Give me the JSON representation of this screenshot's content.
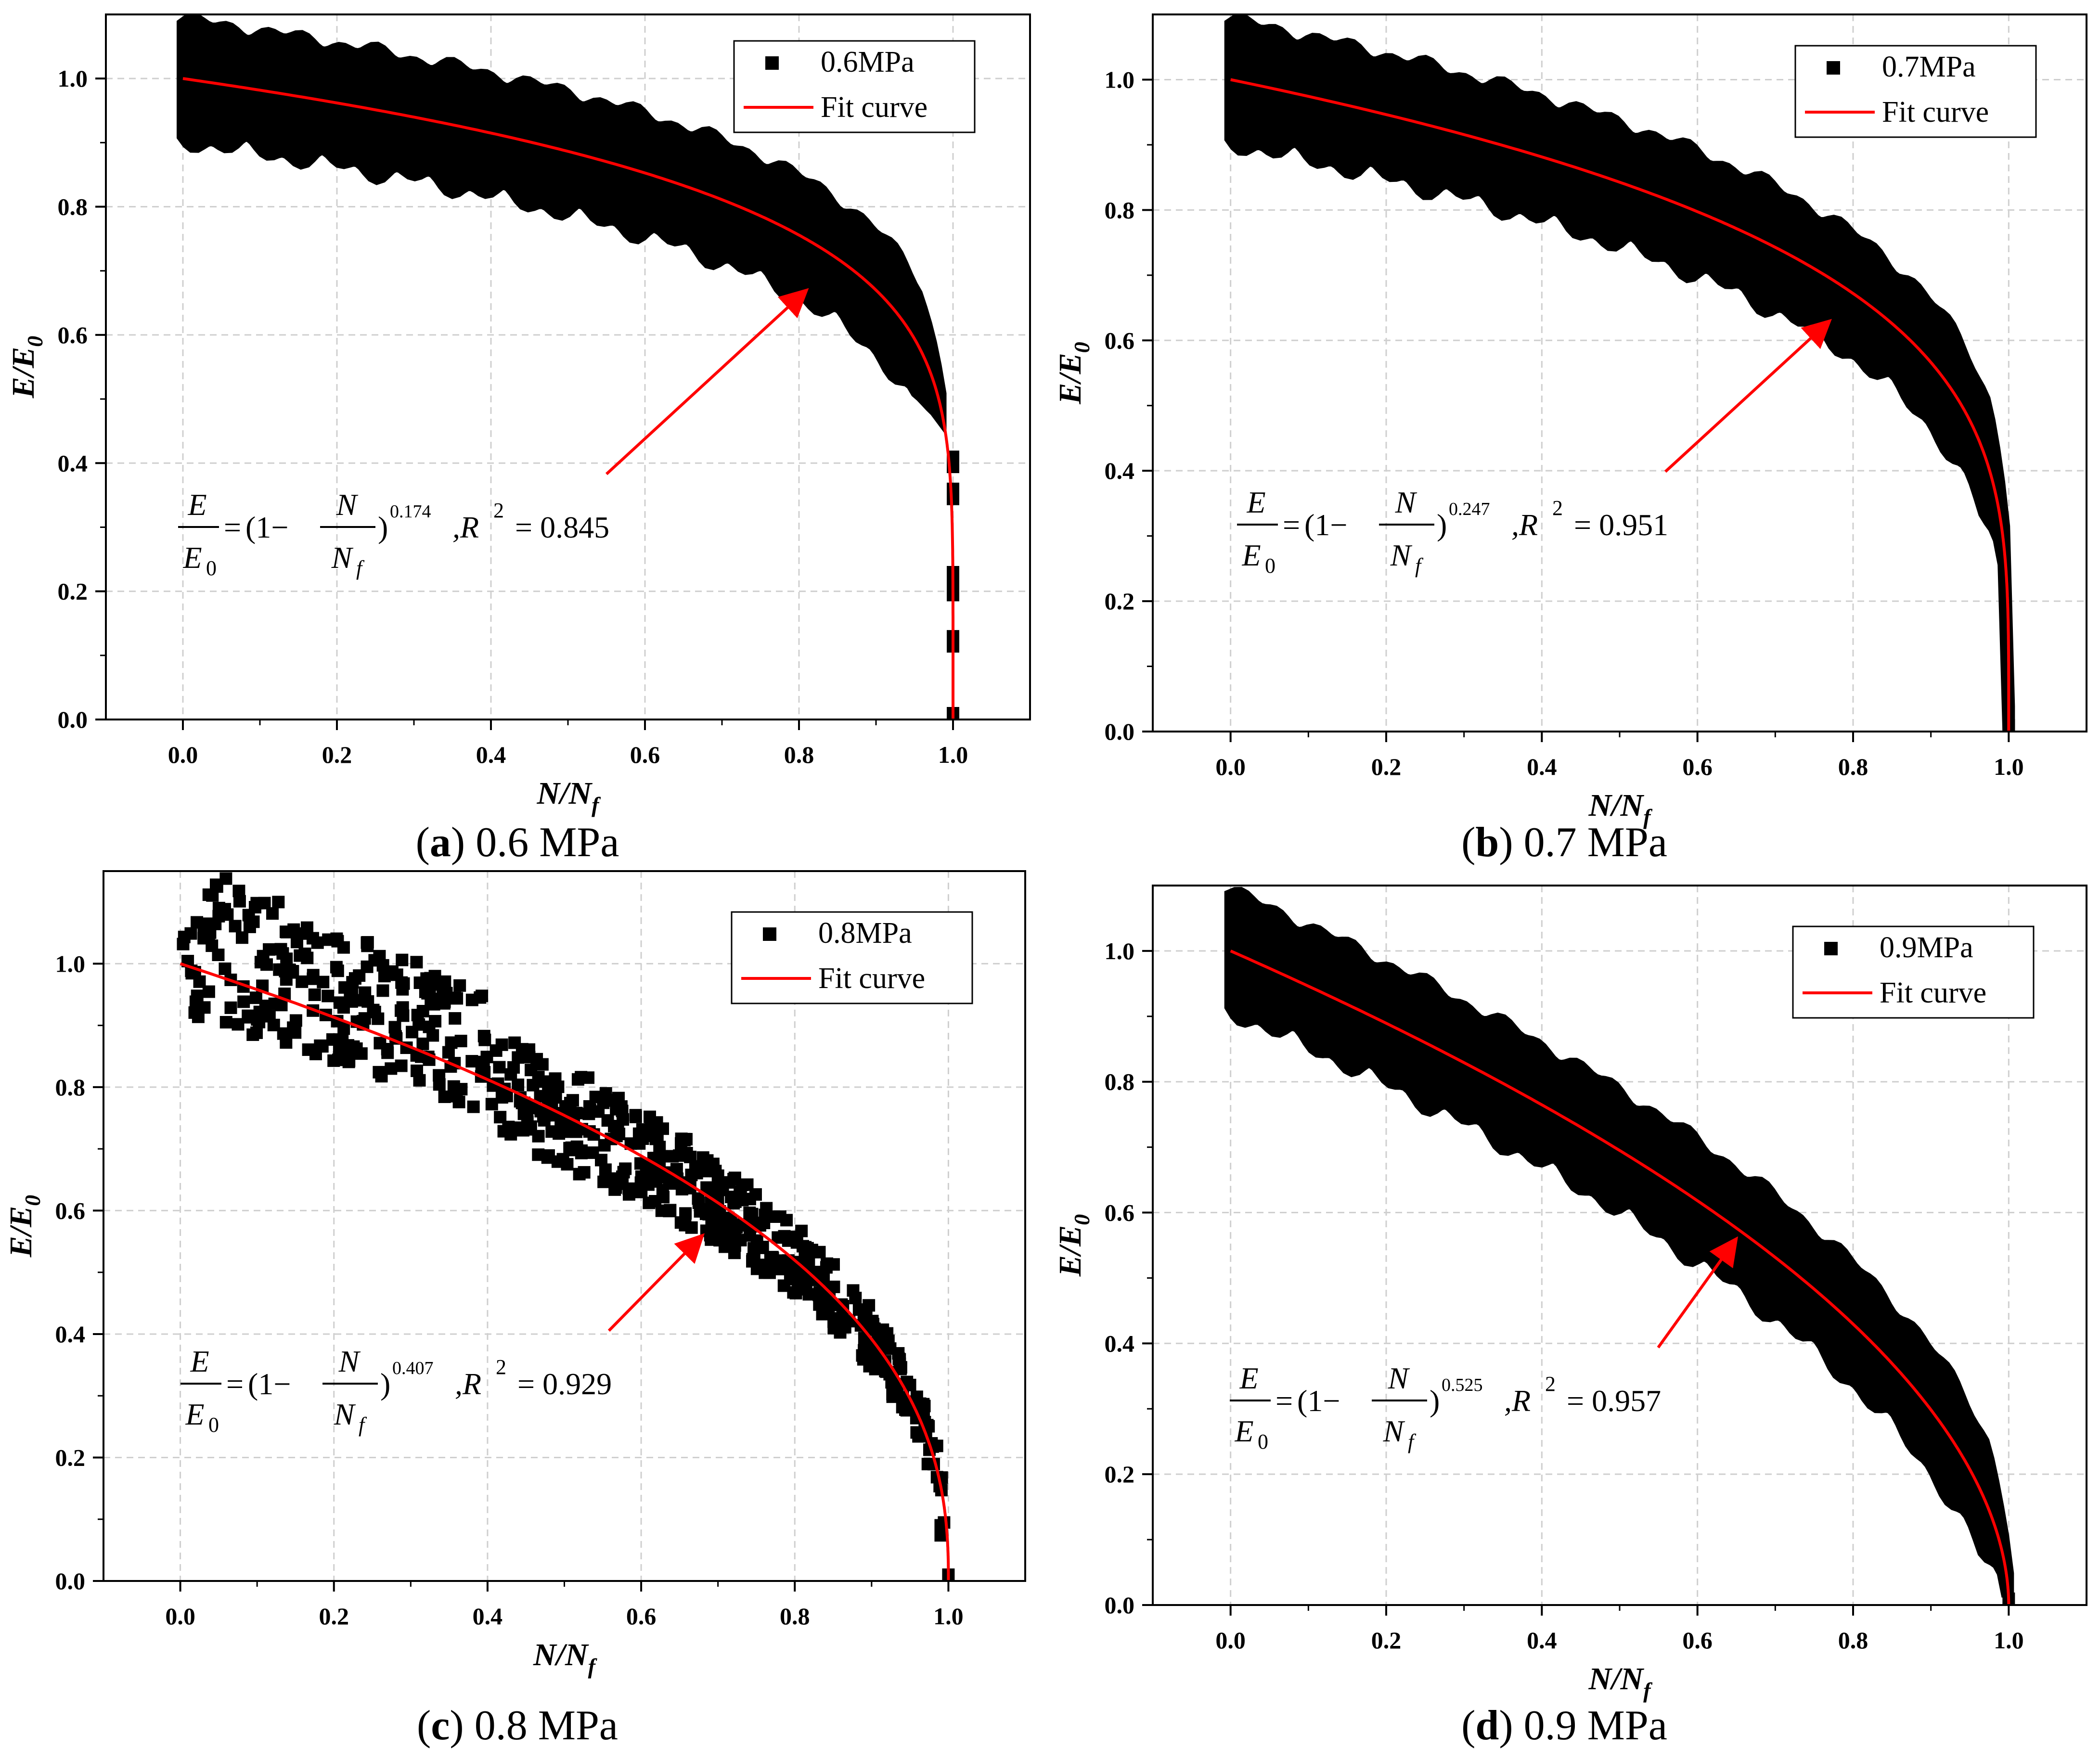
{
  "figure": {
    "panels": [
      {
        "letter": "a",
        "caption_text": " 0.6 MPa"
      },
      {
        "letter": "b",
        "caption_text": " 0.7 MPa"
      },
      {
        "letter": "c",
        "caption_text": " 0.8 MPa"
      },
      {
        "letter": "d",
        "caption_text": " 0.9 MPa"
      }
    ]
  },
  "chart_data": [
    {
      "type": "scatter",
      "title": "",
      "xlabel": "N/Nf",
      "ylabel": "E/E0",
      "xlim": [
        -0.1,
        1.1
      ],
      "ylim": [
        0,
        1.1
      ],
      "xticks": [
        "0.0",
        "0.2",
        "0.4",
        "0.6",
        "0.8",
        "1.0"
      ],
      "yticks": [
        "0.0",
        "0.2",
        "0.4",
        "0.6",
        "0.8",
        "1.0"
      ],
      "grid": true,
      "legend_position": "top-right",
      "series": [
        {
          "name": "0.6MPa",
          "kind": "scatter",
          "marker": "square",
          "color": "#000000",
          "band": {
            "exponent": 0.174,
            "upper_offset": 0.085,
            "lower_offset": 0.09,
            "end_value": 0.49
          },
          "tail_points": [
            [
              1.0,
              0.4
            ],
            [
              1.0,
              0.35
            ],
            [
              1.0,
              0.22
            ],
            [
              1.0,
              0.2
            ],
            [
              1.0,
              0.12
            ],
            [
              1.0,
              0.0
            ]
          ]
        },
        {
          "name": "Fit curve",
          "kind": "line",
          "color": "#ff0000",
          "exponent": 0.174
        }
      ],
      "annotation": {
        "lhs_num": "E",
        "lhs_den": "E",
        "lhs_den_sub": "0",
        "eq": "=",
        "open": "(1−",
        "frac_num": "N",
        "frac_den": "N",
        "frac_den_sub": "f",
        "close": ")",
        "exponent": "0.174",
        "rsq_label": ",R",
        "rsq_exp": "2",
        "rsq_value": "= 0.845",
        "arrow_to": [
          0.81,
          0.67
        ]
      }
    },
    {
      "type": "scatter",
      "title": "",
      "xlabel": "N/Nf",
      "ylabel": "E/E0",
      "xlim": [
        -0.1,
        1.1
      ],
      "ylim": [
        0,
        1.1
      ],
      "xticks": [
        "0.0",
        "0.2",
        "0.4",
        "0.6",
        "0.8",
        "1.0"
      ],
      "yticks": [
        "0.0",
        "0.2",
        "0.4",
        "0.6",
        "0.8",
        "1.0"
      ],
      "grid": true,
      "legend_position": "top-right",
      "series": [
        {
          "name": "0.7MPa",
          "kind": "scatter",
          "marker": "square",
          "color": "#000000",
          "band": {
            "exponent": 0.247,
            "upper_offset": 0.085,
            "lower_offset": 0.09,
            "end_value": 0.02
          },
          "tail_points": [
            [
              1.0,
              0.0
            ]
          ]
        },
        {
          "name": "Fit curve",
          "kind": "line",
          "color": "#ff0000",
          "exponent": 0.247
        }
      ],
      "annotation": {
        "lhs_num": "E",
        "lhs_den": "E",
        "lhs_den_sub": "0",
        "eq": "=",
        "open": "(1−",
        "frac_num": "N",
        "frac_den": "N",
        "frac_den_sub": "f",
        "close": ")",
        "exponent": "0.247",
        "rsq_label": ",R",
        "rsq_exp": "2",
        "rsq_value": "= 0.951",
        "arrow_to": [
          0.77,
          0.63
        ]
      }
    },
    {
      "type": "scatter",
      "title": "",
      "xlabel": "N/Nf",
      "ylabel": "E/E0",
      "xlim": [
        -0.1,
        1.1
      ],
      "ylim": [
        0,
        1.15
      ],
      "xticks": [
        "0.0",
        "0.2",
        "0.4",
        "0.6",
        "0.8",
        "1.0"
      ],
      "yticks": [
        "0.0",
        "0.2",
        "0.4",
        "0.6",
        "0.8",
        "1.0"
      ],
      "grid": true,
      "legend_position": "top-right",
      "series": [
        {
          "name": "0.8MPa",
          "kind": "scatter",
          "marker": "square",
          "color": "#000000",
          "scatter_spread": {
            "exponent": 0.407,
            "early_spread": 0.13,
            "late_spread": 0.04,
            "count": 700
          },
          "tail_points": [
            [
              0.99,
              0.08
            ],
            [
              1.0,
              0.0
            ]
          ]
        },
        {
          "name": "Fit curve",
          "kind": "line",
          "color": "#ff0000",
          "exponent": 0.407
        }
      ],
      "annotation": {
        "lhs_num": "E",
        "lhs_den": "E",
        "lhs_den_sub": "0",
        "eq": "=",
        "open": "(1−",
        "frac_num": "N",
        "frac_den": "N",
        "frac_den_sub": "f",
        "close": ")",
        "exponent": "0.407",
        "rsq_label": ",R",
        "rsq_exp": "2",
        "rsq_value": "= 0.929",
        "arrow_to": [
          0.68,
          0.56
        ]
      }
    },
    {
      "type": "scatter",
      "title": "",
      "xlabel": "N/Nf",
      "ylabel": "E/E0",
      "xlim": [
        -0.1,
        1.1
      ],
      "ylim": [
        0,
        1.1
      ],
      "xticks": [
        "0.0",
        "0.2",
        "0.4",
        "0.6",
        "0.8",
        "1.0"
      ],
      "yticks": [
        "0.0",
        "0.2",
        "0.4",
        "0.6",
        "0.8",
        "1.0"
      ],
      "grid": true,
      "legend_position": "top-right",
      "series": [
        {
          "name": "0.9MPa",
          "kind": "scatter",
          "marker": "square",
          "color": "#000000",
          "band": {
            "exponent": 0.525,
            "upper_offset": 0.085,
            "lower_offset": 0.085,
            "end_value": 0.03
          },
          "tail_points": [
            [
              1.0,
              0.0
            ]
          ]
        },
        {
          "name": "Fit curve",
          "kind": "line",
          "color": "#ff0000",
          "exponent": 0.525
        }
      ],
      "annotation": {
        "lhs_num": "E",
        "lhs_den": "E",
        "lhs_den_sub": "0",
        "eq": "=",
        "open": "(1−",
        "frac_num": "N",
        "frac_den": "N",
        "frac_den_sub": "f",
        "close": ")",
        "exponent": "0.525",
        "rsq_label": ",R",
        "rsq_exp": "2",
        "rsq_value": "= 0.957",
        "arrow_to": [
          0.65,
          0.56
        ]
      }
    }
  ]
}
